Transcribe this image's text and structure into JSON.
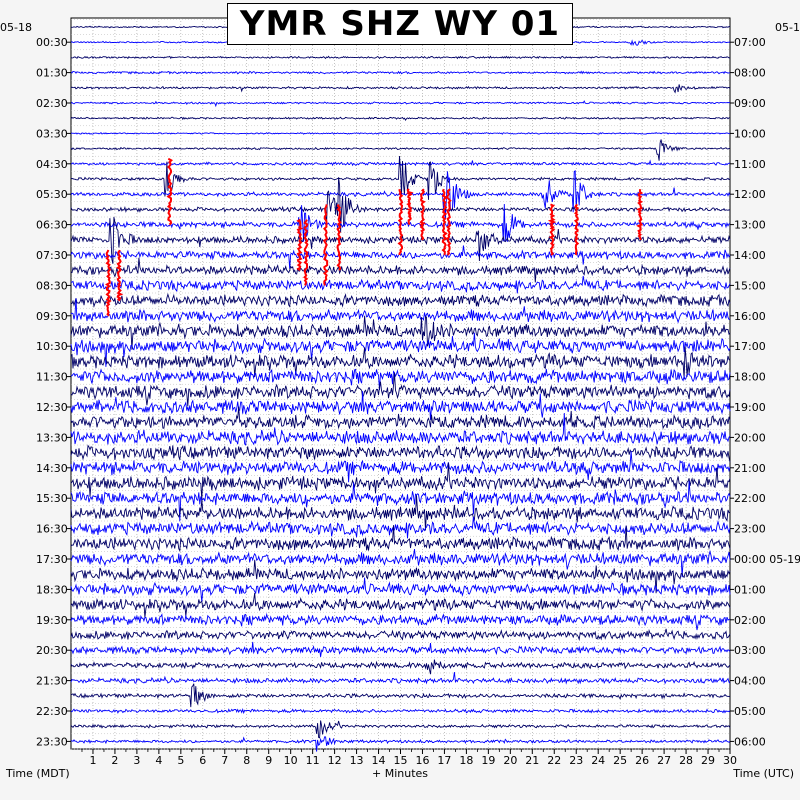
{
  "title": "YMR SHZ WY 01",
  "left_date": "05-18",
  "right_date": "05-1",
  "right_date_change": "05-19",
  "x_axis_label": "+ Minutes",
  "left_axis_label": "Time (MDT)",
  "right_axis_label": "Time (UTC)",
  "colors": {
    "trace_dark": "#000066",
    "trace_blue": "#0000ff",
    "event": "#ff0000",
    "background": "#ffffff",
    "page": "#f5f5f5"
  },
  "chart_data": {
    "type": "line",
    "description_type": "helicorder",
    "x_unit": "minutes",
    "xlim": [
      0,
      30
    ],
    "x_ticks": [
      1,
      2,
      3,
      4,
      5,
      6,
      7,
      8,
      9,
      10,
      11,
      12,
      13,
      14,
      15,
      16,
      17,
      18,
      19,
      20,
      21,
      22,
      23,
      24,
      25,
      26,
      27,
      28,
      29,
      30
    ],
    "rows": 48,
    "minutes_per_row": 30,
    "left_tick_labels": [
      "00:30",
      "01:30",
      "02:30",
      "03:30",
      "04:30",
      "05:30",
      "06:30",
      "07:30",
      "08:30",
      "09:30",
      "10:30",
      "11:30",
      "12:30",
      "13:30",
      "14:30",
      "15:30",
      "16:30",
      "17:30",
      "18:30",
      "19:30",
      "20:30",
      "21:30",
      "22:30",
      "23:30"
    ],
    "right_tick_labels": [
      "07:00",
      "08:00",
      "09:00",
      "10:00",
      "11:00",
      "12:00",
      "13:00",
      "14:00",
      "15:00",
      "16:00",
      "17:00",
      "18:00",
      "19:00",
      "20:00",
      "21:00",
      "22:00",
      "23:00",
      "00:00",
      "01:00",
      "02:00",
      "03:00",
      "04:00",
      "05:00",
      "06:00"
    ],
    "row_noise_level": [
      0.08,
      0.08,
      0.1,
      0.12,
      0.12,
      0.1,
      0.1,
      0.08,
      0.1,
      0.15,
      0.15,
      0.2,
      0.22,
      0.3,
      0.38,
      0.42,
      0.5,
      0.55,
      0.6,
      0.65,
      0.7,
      0.72,
      0.72,
      0.74,
      0.72,
      0.72,
      0.72,
      0.74,
      0.72,
      0.72,
      0.72,
      0.7,
      0.7,
      0.68,
      0.68,
      0.68,
      0.66,
      0.62,
      0.6,
      0.55,
      0.45,
      0.38,
      0.3,
      0.26,
      0.22,
      0.18,
      0.16,
      0.16
    ],
    "events": [
      {
        "row": 1,
        "minute": 25.6,
        "amp": 0.6
      },
      {
        "row": 4,
        "minute": 27.6,
        "amp": 0.5
      },
      {
        "row": 8,
        "minute": 26.8,
        "amp": 1.6
      },
      {
        "row": 10,
        "minute": 4.4,
        "amp": 2.6
      },
      {
        "row": 10,
        "minute": 16.4,
        "amp": 3.5
      },
      {
        "row": 10,
        "minute": 15.1,
        "amp": 3.0
      },
      {
        "row": 11,
        "minute": 17.1,
        "amp": 5.0
      },
      {
        "row": 11,
        "minute": 21.6,
        "amp": 3.2
      },
      {
        "row": 11,
        "minute": 23.0,
        "amp": 3.0
      },
      {
        "row": 12,
        "minute": 12.3,
        "amp": 3.5
      },
      {
        "row": 12,
        "minute": 11.7,
        "amp": 3.0
      },
      {
        "row": 13,
        "minute": 10.5,
        "amp": 3.0
      },
      {
        "row": 13,
        "minute": 19.8,
        "amp": 2.8
      },
      {
        "row": 14,
        "minute": 1.9,
        "amp": 3.5
      },
      {
        "row": 14,
        "minute": 18.6,
        "amp": 2.4
      },
      {
        "row": 20,
        "minute": 16.1,
        "amp": 2.5
      },
      {
        "row": 22,
        "minute": 28.0,
        "amp": 2.0
      },
      {
        "row": 42,
        "minute": 16.2,
        "amp": 2.0
      },
      {
        "row": 44,
        "minute": 5.6,
        "amp": 1.5
      },
      {
        "row": 46,
        "minute": 11.3,
        "amp": 1.5
      },
      {
        "row": 47,
        "minute": 11.3,
        "amp": 1.5
      }
    ],
    "clipped_red_traces": [
      {
        "minute": 1.7,
        "from_row": 15,
        "to_row": 19
      },
      {
        "minute": 2.2,
        "from_row": 15,
        "to_row": 18
      },
      {
        "minute": 4.5,
        "from_row": 9,
        "to_row": 13
      },
      {
        "minute": 10.4,
        "from_row": 13,
        "to_row": 16
      },
      {
        "minute": 10.7,
        "from_row": 13,
        "to_row": 17
      },
      {
        "minute": 11.6,
        "from_row": 12,
        "to_row": 17
      },
      {
        "minute": 12.2,
        "from_row": 12,
        "to_row": 16
      },
      {
        "minute": 15.0,
        "from_row": 11,
        "to_row": 15
      },
      {
        "minute": 15.4,
        "from_row": 11,
        "to_row": 13
      },
      {
        "minute": 16.0,
        "from_row": 11,
        "to_row": 14
      },
      {
        "minute": 17.0,
        "from_row": 11,
        "to_row": 15
      },
      {
        "minute": 17.2,
        "from_row": 11,
        "to_row": 15
      },
      {
        "minute": 21.9,
        "from_row": 12,
        "to_row": 15
      },
      {
        "minute": 23.0,
        "from_row": 12,
        "to_row": 15
      },
      {
        "minute": 25.9,
        "from_row": 11,
        "to_row": 14
      }
    ]
  }
}
